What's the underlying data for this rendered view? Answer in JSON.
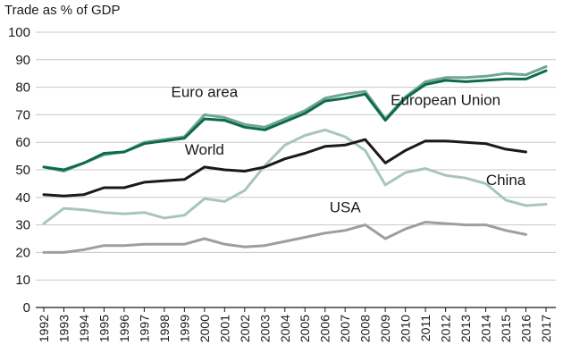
{
  "chart_data": {
    "type": "line",
    "title": "Trade as % of GDP",
    "xlabel": "",
    "ylabel": "Trade as % of GDP",
    "ylim": [
      0,
      100
    ],
    "yticks": [
      0,
      10,
      20,
      30,
      40,
      50,
      60,
      70,
      80,
      90,
      100
    ],
    "grid": "horizontal",
    "x": [
      "1992",
      "1993",
      "1994",
      "1995",
      "1996",
      "1997",
      "1998",
      "1999",
      "2000",
      "2001",
      "2002",
      "2003",
      "2004",
      "2005",
      "2006",
      "2007",
      "2008",
      "2009",
      "2010",
      "2011",
      "2012",
      "2013",
      "2014",
      "2015",
      "2016",
      "2017"
    ],
    "series": [
      {
        "name": "Euro area",
        "key": "euro",
        "color": "#6fa593",
        "values": [
          51,
          49.5,
          52.5,
          55.5,
          56.5,
          60,
          61,
          62,
          70,
          69,
          66.5,
          65.5,
          68.5,
          71.5,
          76,
          77.5,
          78.5,
          68.5,
          76.5,
          82,
          83.5,
          83.5,
          84,
          85,
          84.5,
          87.5
        ]
      },
      {
        "name": "European Union",
        "key": "eu",
        "color": "#0d6a4c",
        "values": [
          51,
          50,
          52.5,
          56,
          56.5,
          59.5,
          60.5,
          61.5,
          68.5,
          68,
          65.5,
          64.5,
          67.5,
          70.5,
          75,
          76,
          77.5,
          68,
          76,
          81,
          82.5,
          82,
          82.5,
          83,
          83,
          86
        ]
      },
      {
        "name": "World",
        "key": "world",
        "color": "#1a1a1a",
        "values": [
          41,
          40.5,
          41,
          43.5,
          43.5,
          45.5,
          46,
          46.5,
          51,
          50,
          49.5,
          51,
          54,
          56,
          58.5,
          59,
          61,
          52.5,
          57,
          60.5,
          60.5,
          60,
          59.5,
          57.5,
          56.5,
          null
        ]
      },
      {
        "name": "China",
        "key": "china",
        "color": "#a8c6b8",
        "values": [
          30.5,
          36,
          35.5,
          34.5,
          34,
          34.5,
          32.5,
          33.5,
          39.5,
          38.5,
          42.5,
          51.5,
          59,
          62.5,
          64.5,
          62,
          57,
          44.5,
          49,
          50.5,
          48,
          47,
          45,
          39,
          37,
          37.5
        ]
      },
      {
        "name": "USA",
        "key": "usa",
        "color": "#9e9e9e",
        "values": [
          20,
          20,
          21,
          22.5,
          22.5,
          23,
          23,
          23,
          25,
          23,
          22,
          22.5,
          24,
          25.5,
          27,
          28,
          30,
          25,
          28.5,
          31,
          30.5,
          30,
          30,
          28,
          26.5,
          null
        ]
      }
    ],
    "series_labels": [
      {
        "series": "euro",
        "text": "Euro area",
        "x": "2000",
        "y": 76.5
      },
      {
        "series": "eu",
        "text": "European Union",
        "x": "2012",
        "y": 73.5
      },
      {
        "series": "world",
        "text": "World",
        "x": "2000",
        "y": 55.5
      },
      {
        "series": "china",
        "text": "China",
        "x": "2015",
        "y": 44.5
      },
      {
        "series": "usa",
        "text": "USA",
        "x": "2007",
        "y": 34.5
      }
    ]
  }
}
